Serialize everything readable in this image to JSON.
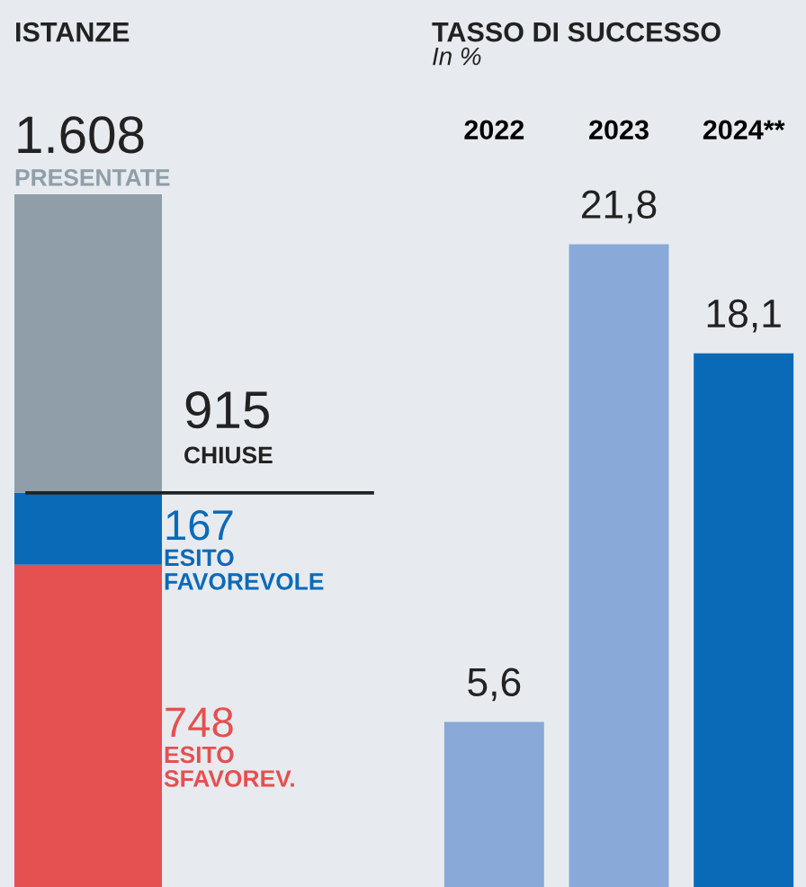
{
  "chart_data": [
    {
      "type": "bar",
      "title": "ISTANZE",
      "categories": [
        null
      ],
      "tick_labels": false,
      "stacked": true,
      "ylim": [
        0,
        1608
      ],
      "series": [
        {
          "name": "ESITO\nSFAVOREV.",
          "color": "#e55050",
          "values": [
            748
          ],
          "value_labels": [
            "748"
          ]
        },
        {
          "name": "ESITO\nFAVOREVOLE",
          "color": "#0a6ab8",
          "values": [
            167
          ],
          "value_labels": [
            "167"
          ]
        },
        {
          "name": "PRESENTATE",
          "color": "#8f9ea8",
          "values": [
            693
          ]
        }
      ],
      "totals": [
        "1.608"
      ],
      "ref_lines": [
        {
          "axis": "y",
          "value": 915,
          "label": "915\nCHIUSE",
          "color": "#222222"
        }
      ]
    },
    {
      "type": "bar",
      "title": "TASSO DI SUCCESSO",
      "subtitle": "In %",
      "categories": [
        "2022",
        "2023",
        "2024**"
      ],
      "values": [
        5.6,
        21.8,
        18.1
      ],
      "colors": [
        "#89a9d8",
        "#89a9d8",
        "#0a6ab8"
      ],
      "value_labels": [
        "5,6",
        "21,8",
        "18,1"
      ],
      "tick_labels": "x"
    }
  ]
}
